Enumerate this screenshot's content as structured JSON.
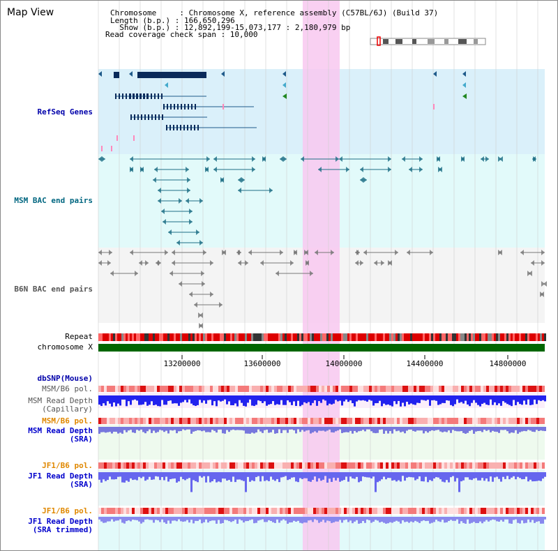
{
  "header": {
    "title": "Map View",
    "chromosome_line": "Chromosome     : Chromosome X, reference assembly (C57BL/6J) (Build 37)",
    "length_line": "Length (b.p.) : 166,650,296",
    "show_line": "  Show (b.p.) : 12,892,199-15,073,177 : 2,180,979 bp",
    "coverage_line": "Read coverage check span : 10,000"
  },
  "tracks": {
    "refseq": "RefSeq Genes",
    "msm_bac": "MSM BAC end pairs",
    "b6n_bac": "B6N BAC end pairs",
    "repeat": "Repeat",
    "chromosome": "chromosome X",
    "dbsnp": "dbSNP(Mouse)",
    "msm_pol1": "MSM/B6 pol.",
    "msm_depth_cap_1": "MSM Read Depth",
    "msm_depth_cap_2": "(Capillary)",
    "msm_pol2": "MSM/B6 pol.",
    "msm_depth_sra_1": "MSM Read Depth",
    "msm_depth_sra_2": "(SRA)",
    "jf1_pol1": "JF1/B6 pol.",
    "jf1_depth_1": "JF1 Read Depth",
    "jf1_depth_2": "(SRA)",
    "jf1_pol2": "JF1/B6 pol.",
    "jf1_trim_1": "JF1 Read Depth",
    "jf1_trim_2": "(SRA trimmed)"
  },
  "axis": {
    "ticks": [
      "13200000",
      "13600000",
      "14000000",
      "14400000",
      "14800000"
    ]
  },
  "colors": {
    "refseq_label": "#0000aa",
    "msm_label": "#006680",
    "b6n_label": "#555555",
    "gene_fill": "#0a2a5a",
    "chromosome_bar": "#006600",
    "pol_label": "#e08800",
    "depth_label": "#0000cc",
    "highlight": "#f8c8f0"
  }
}
